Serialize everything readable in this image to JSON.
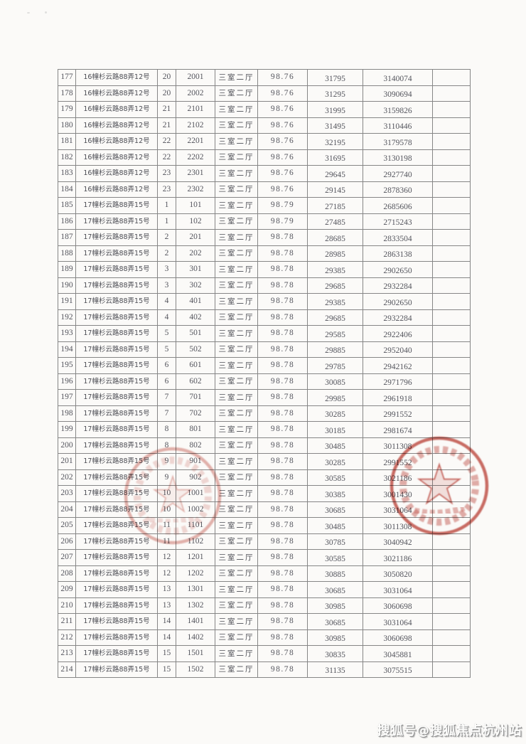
{
  "page": {
    "background": "#fbfaf8"
  },
  "watermark": {
    "text": "搜狐号@搜狐焦点杭州站",
    "color": "#fdfdfc"
  },
  "stamps": {
    "left": {
      "color": "#cb6a61",
      "shape": "circular-star-seal"
    },
    "right": {
      "color": "#bf4a41",
      "shape": "circular-star-seal"
    }
  },
  "table": {
    "columns": [
      "seq",
      "address",
      "floor",
      "room",
      "layout",
      "area",
      "unit_price",
      "total_price",
      "remark"
    ],
    "rows": [
      [
        "177",
        "16幢杉云路88弄12号",
        "20",
        "2001",
        "三室二厅",
        "98.76",
        "31795",
        "3140074",
        ""
      ],
      [
        "178",
        "16幢杉云路88弄12号",
        "20",
        "2002",
        "三室二厅",
        "98.76",
        "31295",
        "3090694",
        ""
      ],
      [
        "179",
        "16幢杉云路88弄12号",
        "21",
        "2101",
        "三室二厅",
        "98.76",
        "31995",
        "3159826",
        ""
      ],
      [
        "180",
        "16幢杉云路88弄12号",
        "21",
        "2102",
        "三室二厅",
        "98.76",
        "31495",
        "3110446",
        ""
      ],
      [
        "181",
        "16幢杉云路88弄12号",
        "22",
        "2201",
        "三室二厅",
        "98.76",
        "32195",
        "3179578",
        ""
      ],
      [
        "182",
        "16幢杉云路88弄12号",
        "22",
        "2202",
        "三室二厅",
        "98.76",
        "31695",
        "3130198",
        ""
      ],
      [
        "183",
        "16幢杉云路88弄12号",
        "23",
        "2301",
        "三室二厅",
        "98.76",
        "29645",
        "2927740",
        ""
      ],
      [
        "184",
        "16幢杉云路88弄12号",
        "23",
        "2302",
        "三室二厅",
        "98.76",
        "29145",
        "2878360",
        ""
      ],
      [
        "185",
        "17幢杉云路88弄15号",
        "1",
        "101",
        "三室二厅",
        "98.79",
        "27185",
        "2685606",
        ""
      ],
      [
        "186",
        "17幢杉云路88弄15号",
        "1",
        "102",
        "三室二厅",
        "98.79",
        "27485",
        "2715243",
        ""
      ],
      [
        "187",
        "17幢杉云路88弄15号",
        "2",
        "201",
        "三室二厅",
        "98.78",
        "28685",
        "2833504",
        ""
      ],
      [
        "188",
        "17幢杉云路88弄15号",
        "2",
        "202",
        "三室二厅",
        "98.78",
        "28985",
        "2863138",
        ""
      ],
      [
        "189",
        "17幢杉云路88弄15号",
        "3",
        "301",
        "三室二厅",
        "98.78",
        "29385",
        "2902650",
        ""
      ],
      [
        "190",
        "17幢杉云路88弄15号",
        "3",
        "302",
        "三室二厅",
        "98.78",
        "29685",
        "2932284",
        ""
      ],
      [
        "191",
        "17幢杉云路88弄15号",
        "4",
        "401",
        "三室二厅",
        "98.78",
        "29385",
        "2902650",
        ""
      ],
      [
        "192",
        "17幢杉云路88弄15号",
        "4",
        "402",
        "三室二厅",
        "98.78",
        "29685",
        "2932284",
        ""
      ],
      [
        "193",
        "17幢杉云路88弄15号",
        "5",
        "501",
        "三室二厅",
        "98.78",
        "29585",
        "2922406",
        ""
      ],
      [
        "194",
        "17幢杉云路88弄15号",
        "5",
        "502",
        "三室二厅",
        "98.78",
        "29885",
        "2952040",
        ""
      ],
      [
        "195",
        "17幢杉云路88弄15号",
        "6",
        "601",
        "三室二厅",
        "98.78",
        "29785",
        "2942162",
        ""
      ],
      [
        "196",
        "17幢杉云路88弄15号",
        "6",
        "602",
        "三室二厅",
        "98.78",
        "30085",
        "2971796",
        ""
      ],
      [
        "197",
        "17幢杉云路88弄15号",
        "7",
        "701",
        "三室二厅",
        "98.78",
        "29985",
        "2961918",
        ""
      ],
      [
        "198",
        "17幢杉云路88弄15号",
        "7",
        "702",
        "三室二厅",
        "98.78",
        "30285",
        "2991552",
        ""
      ],
      [
        "199",
        "17幢杉云路88弄15号",
        "8",
        "801",
        "三室二厅",
        "98.78",
        "30185",
        "2981674",
        ""
      ],
      [
        "200",
        "17幢杉云路88弄15号",
        "8",
        "802",
        "三室二厅",
        "98.78",
        "30485",
        "3011308",
        ""
      ],
      [
        "201",
        "17幢杉云路88弄15号",
        "9",
        "901",
        "三室二厅",
        "98.78",
        "30285",
        "2991552",
        ""
      ],
      [
        "202",
        "17幢杉云路88弄15号",
        "9",
        "902",
        "三室二厅",
        "98.78",
        "30585",
        "3021186",
        ""
      ],
      [
        "203",
        "17幢杉云路88弄15号",
        "10",
        "1001",
        "三室二厅",
        "98.78",
        "30385",
        "3001430",
        ""
      ],
      [
        "204",
        "17幢杉云路88弄15号",
        "10",
        "1002",
        "三室二厅",
        "98.78",
        "30685",
        "3031064",
        ""
      ],
      [
        "205",
        "17幢杉云路88弄15号",
        "11",
        "1101",
        "三室二厅",
        "98.78",
        "30485",
        "3011308",
        ""
      ],
      [
        "206",
        "17幢杉云路88弄15号",
        "11",
        "1102",
        "三室二厅",
        "98.78",
        "30785",
        "3040942",
        ""
      ],
      [
        "207",
        "17幢杉云路88弄15号",
        "12",
        "1201",
        "三室二厅",
        "98.78",
        "30585",
        "3021186",
        ""
      ],
      [
        "208",
        "17幢杉云路88弄15号",
        "12",
        "1202",
        "三室二厅",
        "98.78",
        "30885",
        "3050820",
        ""
      ],
      [
        "209",
        "17幢杉云路88弄15号",
        "13",
        "1301",
        "三室二厅",
        "98.78",
        "30685",
        "3031064",
        ""
      ],
      [
        "210",
        "17幢杉云路88弄15号",
        "13",
        "1302",
        "三室二厅",
        "98.78",
        "30985",
        "3060698",
        ""
      ],
      [
        "211",
        "17幢杉云路88弄15号",
        "14",
        "1401",
        "三室二厅",
        "98.78",
        "30685",
        "3031064",
        ""
      ],
      [
        "212",
        "17幢杉云路88弄15号",
        "14",
        "1402",
        "三室二厅",
        "98.78",
        "30985",
        "3060698",
        ""
      ],
      [
        "213",
        "17幢杉云路88弄15号",
        "15",
        "1501",
        "三室二厅",
        "98.78",
        "30835",
        "3045881",
        ""
      ],
      [
        "214",
        "17幢杉云路88弄15号",
        "15",
        "1502",
        "三室二厅",
        "98.78",
        "31135",
        "3075515",
        ""
      ]
    ]
  }
}
